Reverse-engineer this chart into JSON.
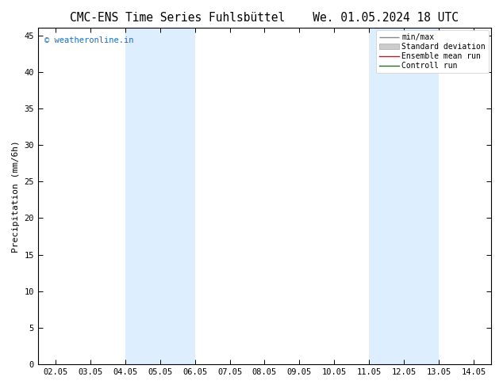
{
  "title_left": "CMC-ENS Time Series Fuhlsbüttel",
  "title_right": "We. 01.05.2024 18 UTC",
  "ylabel": "Precipitation (mm/6h)",
  "x_tick_labels": [
    "02.05",
    "03.05",
    "04.05",
    "05.05",
    "06.05",
    "07.05",
    "08.05",
    "09.05",
    "10.05",
    "11.05",
    "12.05",
    "13.05",
    "14.05"
  ],
  "x_tick_positions": [
    0,
    1,
    2,
    3,
    4,
    5,
    6,
    7,
    8,
    9,
    10,
    11,
    12
  ],
  "ylim": [
    0,
    46
  ],
  "yticks": [
    0,
    5,
    10,
    15,
    20,
    25,
    30,
    35,
    40,
    45
  ],
  "shaded_regions": [
    {
      "xmin": 2.0,
      "xmax": 3.0,
      "color": "#ddeeff"
    },
    {
      "xmin": 3.0,
      "xmax": 4.0,
      "color": "#ddeeff"
    },
    {
      "xmin": 9.0,
      "xmax": 10.0,
      "color": "#ddeeff"
    },
    {
      "xmin": 10.0,
      "xmax": 11.0,
      "color": "#ddeeff"
    }
  ],
  "legend_labels": [
    "min/max",
    "Standard deviation",
    "Ensemble mean run",
    "Controll run"
  ],
  "legend_line_colors": [
    "#888888",
    "#bbbbbb",
    "#ff0000",
    "#008800"
  ],
  "watermark": "© weatheronline.in",
  "watermark_color": "#1a6dc0",
  "background_color": "#ffffff",
  "axes_background": "#ffffff",
  "tick_fontsize": 7.5,
  "label_fontsize": 8,
  "title_fontsize": 10.5
}
